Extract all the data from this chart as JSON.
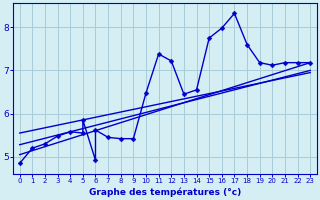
{
  "xlabel": "Graphe des températures (°c)",
  "bg_color": "#d4eef4",
  "grid_color": "#a8ccd8",
  "line_color": "#0000cc",
  "xlim": [
    -0.5,
    23.5
  ],
  "ylim": [
    4.6,
    8.55
  ],
  "yticks": [
    5,
    6,
    7,
    8
  ],
  "xticks": [
    0,
    1,
    2,
    3,
    4,
    5,
    6,
    7,
    8,
    9,
    10,
    11,
    12,
    13,
    14,
    15,
    16,
    17,
    18,
    19,
    20,
    21,
    22,
    23
  ],
  "scatter_x": [
    0,
    1,
    2,
    3,
    4,
    5,
    5,
    6,
    6,
    7,
    8,
    9,
    10,
    11,
    12,
    13,
    14,
    15,
    16,
    17,
    18,
    19,
    20,
    21,
    22,
    23
  ],
  "scatter_y": [
    4.85,
    5.2,
    5.3,
    5.48,
    5.58,
    5.55,
    5.85,
    4.92,
    5.62,
    5.45,
    5.42,
    5.42,
    6.48,
    7.38,
    7.22,
    6.45,
    6.55,
    7.75,
    7.98,
    8.32,
    7.6,
    7.18,
    7.12,
    7.18,
    7.18,
    7.18
  ],
  "line1_x": [
    0,
    23
  ],
  "line1_y": [
    5.05,
    7.18
  ],
  "line2_x": [
    0,
    23
  ],
  "line2_y": [
    5.28,
    7.0
  ],
  "line3_x": [
    0,
    23
  ],
  "line3_y": [
    5.55,
    6.95
  ],
  "marker_size": 2.5,
  "linewidth": 1.0
}
